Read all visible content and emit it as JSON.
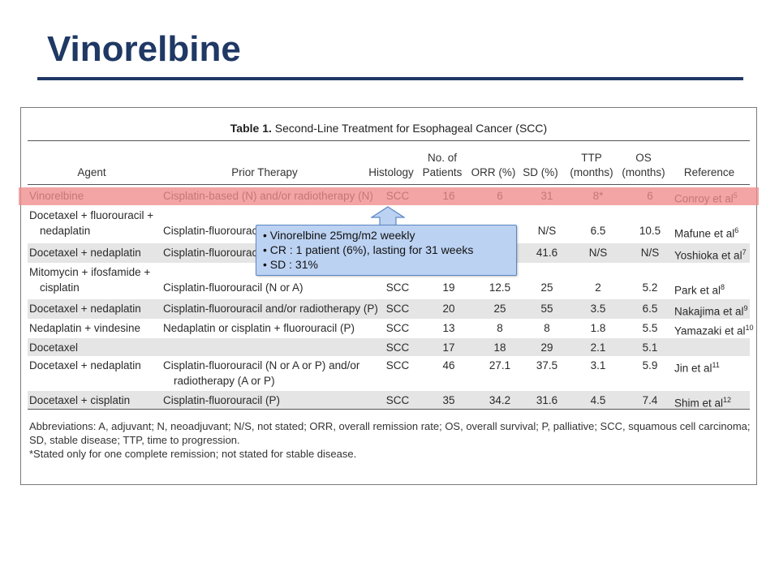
{
  "slide": {
    "title": "Vinorelbine"
  },
  "table": {
    "caption_label": "Table 1.",
    "caption_text": "Second-Line Treatment for Esophageal Cancer (SCC)",
    "headers": {
      "agent": "Agent",
      "prior_therapy": "Prior Therapy",
      "histology": "Histology",
      "patients_1": "No. of",
      "patients_2": "Patients",
      "orr": "ORR (%)",
      "sd": "SD (%)",
      "ttp_1": "TTP",
      "ttp_2": "(months)",
      "os_1": "OS",
      "os_2": "(months)",
      "reference": "Reference"
    },
    "rows": [
      {
        "agent": [
          "Vinorelbine"
        ],
        "prior": [
          "Cisplatin-based (N) and/or radiotherapy (N)"
        ],
        "histology": "SCC",
        "patients": "16",
        "orr": "6",
        "sd": "31",
        "ttp": "8*",
        "os": "6",
        "ref": "Conroy et al",
        "ref_sup": "5"
      },
      {
        "agent": [
          "Docetaxel + fluorouracil +",
          "nedaplatin"
        ],
        "prior": [
          "Cisplatin-fluorouracil"
        ],
        "histology": "",
        "patients": "",
        "orr": "",
        "sd": "N/S",
        "ttp": "6.5",
        "os": "10.5",
        "ref": "Mafune et al",
        "ref_sup": "6"
      },
      {
        "agent": [
          "Docetaxel + nedaplatin"
        ],
        "prior": [
          "Cisplatin-fluorouracil"
        ],
        "histology": "",
        "patients": "",
        "orr": "",
        "sd": "41.6",
        "ttp": "N/S",
        "os": "N/S",
        "ref": "Yoshioka et al",
        "ref_sup": "7"
      },
      {
        "agent": [
          "Mitomycin + ifosfamide +",
          "cisplatin"
        ],
        "prior": [
          "Cisplatin-fluorouracil (N or A)"
        ],
        "histology": "SCC",
        "patients": "19",
        "orr": "12.5",
        "sd": "25",
        "ttp": "2",
        "os": "5.2",
        "ref": "Park et al",
        "ref_sup": "8"
      },
      {
        "agent": [
          "Docetaxel + nedaplatin"
        ],
        "prior": [
          "Cisplatin-fluorouracil and/or radiotherapy (P)"
        ],
        "histology": "SCC",
        "patients": "20",
        "orr": "25",
        "sd": "55",
        "ttp": "3.5",
        "os": "6.5",
        "ref": "Nakajima et al",
        "ref_sup": "9"
      },
      {
        "agent": [
          "Nedaplatin + vindesine"
        ],
        "prior": [
          "Nedaplatin or cisplatin + fluorouracil (P)"
        ],
        "histology": "SCC",
        "patients": "13",
        "orr": "8",
        "sd": "8",
        "ttp": "1.8",
        "os": "5.5",
        "ref": "Yamazaki et al",
        "ref_sup": "10"
      },
      {
        "agent": [
          "Docetaxel"
        ],
        "prior": [
          ""
        ],
        "histology": "SCC",
        "patients": "17",
        "orr": "18",
        "sd": "29",
        "ttp": "2.1",
        "os": "5.1",
        "ref": "",
        "ref_sup": ""
      },
      {
        "agent": [
          "Docetaxel + nedaplatin"
        ],
        "prior": [
          "Cisplatin-fluorouracil (N or A or P) and/or",
          "radiotherapy (A or P)"
        ],
        "histology": "SCC",
        "patients": "46",
        "orr": "27.1",
        "sd": "37.5",
        "ttp": "3.1",
        "os": "5.9",
        "ref": "Jin et al",
        "ref_sup": "11"
      },
      {
        "agent": [
          "Docetaxel + cisplatin"
        ],
        "prior": [
          "Cisplatin-fluorouracil (P)"
        ],
        "histology": "SCC",
        "patients": "35",
        "orr": "34.2",
        "sd": "31.6",
        "ttp": "4.5",
        "os": "7.4",
        "ref": "Shim et al",
        "ref_sup": "12"
      }
    ],
    "footnotes": [
      "Abbreviations: A, adjuvant; N, neoadjuvant; N/S, not stated; ORR, overall remission rate; OS, overall survival; P, palliative; SCC, squamous cell carcinoma; SD, stable disease; TTP, time to progression.",
      "*Stated only for one complete remission; not stated for stable disease."
    ]
  },
  "callout": {
    "lines": [
      "• Vinorelbine 25mg/m2 weekly",
      "• CR : 1 patient (6%), lasting for 31 weeks",
      "• SD : 31%"
    ],
    "fill_color": "#bcd2f2",
    "border_color": "#5b87c7"
  },
  "colors": {
    "title": "#1f3864",
    "highlight": "#f08c8c",
    "row_shade": "#e5e5e5"
  }
}
